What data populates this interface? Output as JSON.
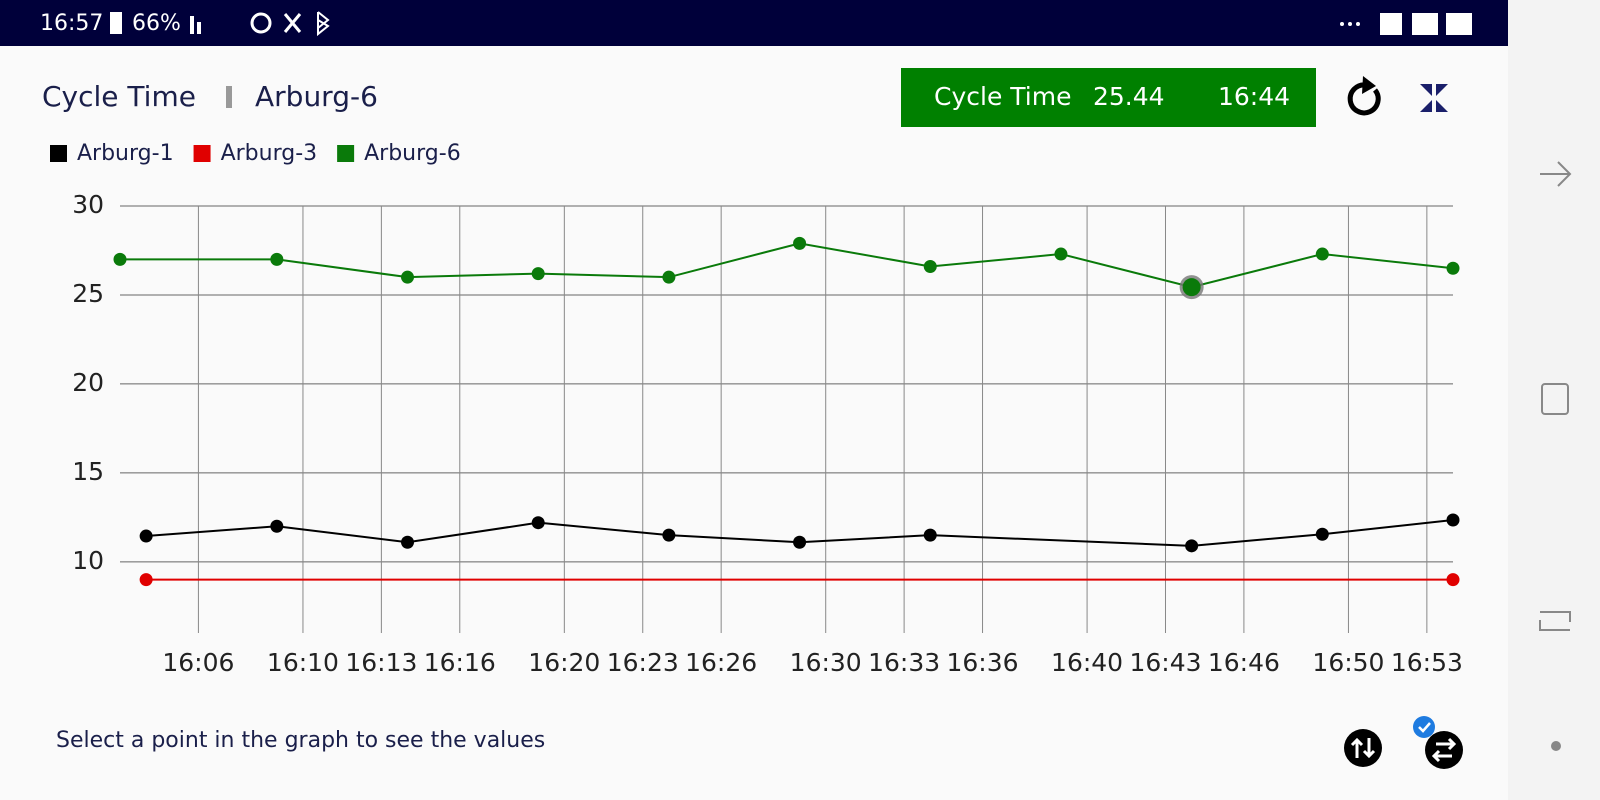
{
  "status_bar": {
    "time": "16:57",
    "battery": "66%"
  },
  "header": {
    "title": "Cycle Time",
    "machine": "Arburg-6"
  },
  "info_box": {
    "label": "Cycle Time",
    "value": 25.44,
    "time": "16:44"
  },
  "chart_data": {
    "type": "line",
    "series": [
      {
        "name": "Arburg-1",
        "color": "#000000",
        "x": [
          "16:04",
          "16:09",
          "16:14",
          "16:19",
          "16:24",
          "16:29",
          "16:34",
          "16:44",
          "16:49",
          "16:54"
        ],
        "values": [
          11.45,
          12.0,
          11.1,
          12.2,
          11.5,
          11.1,
          11.5,
          10.9,
          11.55,
          12.35
        ]
      },
      {
        "name": "Arburg-3",
        "color": "#e00000",
        "x": [
          "16:04",
          "16:54"
        ],
        "values": [
          9.0,
          9.0
        ]
      },
      {
        "name": "Arburg-6",
        "color": "#0a7a0a",
        "x": [
          "16:03",
          "16:09",
          "16:14",
          "16:19",
          "16:24",
          "16:29",
          "16:34",
          "16:39",
          "16:44",
          "16:49",
          "16:54"
        ],
        "values": [
          27.0,
          27.0,
          26.0,
          26.2,
          26.0,
          27.9,
          26.6,
          27.3,
          25.44,
          27.3,
          26.5
        ]
      }
    ],
    "xlim": [
      "16:03",
      "16:54"
    ],
    "xticks": [
      "16:06",
      "16:10",
      "16:13",
      "16:16",
      "16:20",
      "16:23",
      "16:26",
      "16:30",
      "16:33",
      "16:36",
      "16:40",
      "16:43",
      "16:46",
      "16:50",
      "16:53"
    ],
    "ylim": [
      6,
      30
    ],
    "yticks": [
      10,
      15,
      20,
      25,
      30
    ],
    "grid": true
  },
  "footer": {
    "hint": "Select a point in the graph to see the values"
  }
}
